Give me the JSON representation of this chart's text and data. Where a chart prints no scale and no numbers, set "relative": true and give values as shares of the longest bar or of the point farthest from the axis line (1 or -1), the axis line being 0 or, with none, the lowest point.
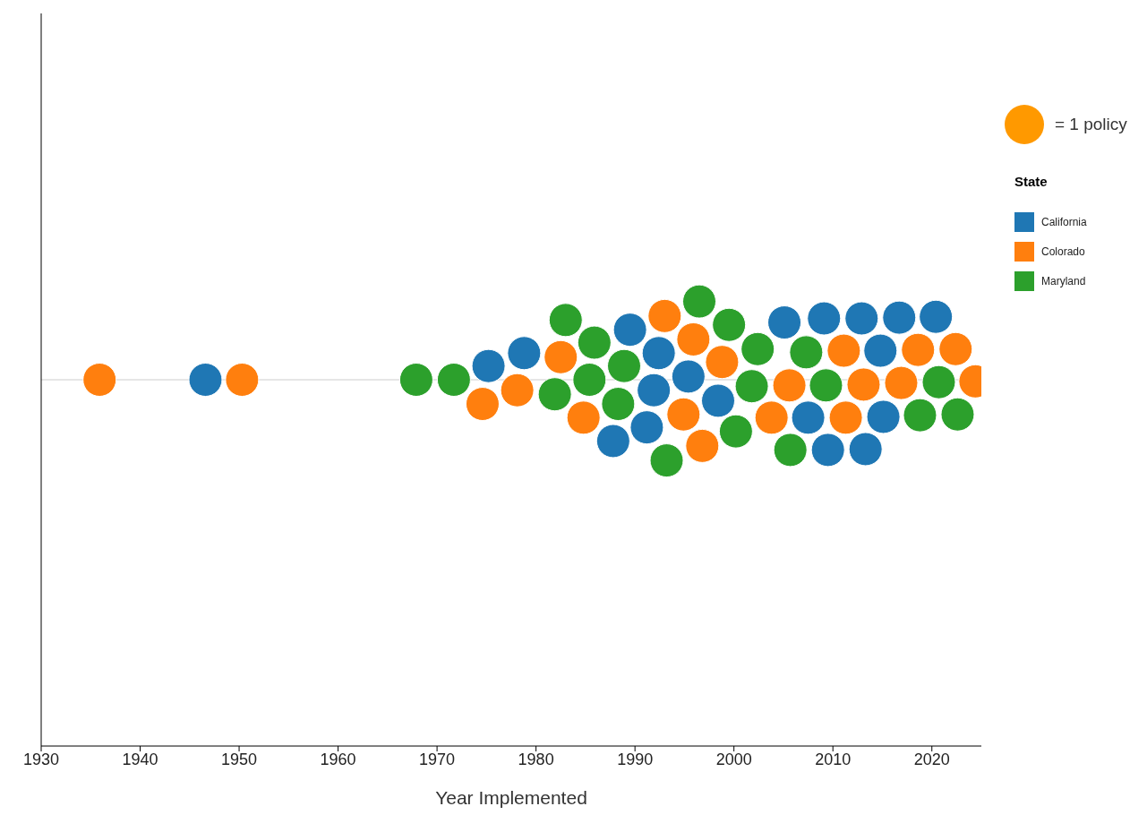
{
  "chart_data": {
    "type": "scatter",
    "relative": true,
    "xlabel": "Year Implemented",
    "xlim": [
      1930,
      2025
    ],
    "xticks": [
      1930,
      1940,
      1950,
      1960,
      1970,
      1980,
      1990,
      2000,
      2010,
      2020
    ],
    "tick_labels": "x",
    "legend": "right",
    "legend_title": "State",
    "marker": "circle",
    "annotations": [
      "= 1 policy"
    ],
    "series": [
      {
        "name": "California",
        "color": "#1f77b4",
        "x": [
          1946.6,
          1975.2,
          1978.8,
          1989.5,
          1992.4,
          1987.8,
          1991.9,
          1991.2,
          1995.4,
          1998.4,
          2005.1,
          2009.1,
          2012.9,
          2016.7,
          2020.4,
          2014.8,
          2007.5,
          2015.1,
          2009.5,
          2013.3
        ],
        "values": [
          0,
          0.17,
          0.33,
          0.62,
          0.33,
          -0.76,
          -0.13,
          -0.59,
          0.04,
          -0.26,
          0.71,
          0.76,
          0.76,
          0.77,
          0.78,
          0.36,
          -0.47,
          -0.46,
          -0.87,
          -0.86
        ]
      },
      {
        "name": "Colorado",
        "color": "#ff7f0e",
        "x": [
          1935.9,
          1950.3,
          1974.6,
          1978.1,
          1982.5,
          1984.8,
          1993.0,
          1995.9,
          1994.9,
          1996.8,
          1998.8,
          2003.8,
          2005.6,
          2011.1,
          2011.3,
          2013.1,
          2016.9,
          2018.6,
          2022.4,
          2024.4
        ],
        "values": [
          0,
          0,
          -0.3,
          -0.13,
          0.28,
          -0.47,
          0.79,
          0.5,
          -0.43,
          -0.82,
          0.22,
          -0.47,
          -0.07,
          0.36,
          -0.47,
          -0.06,
          -0.04,
          0.37,
          0.38,
          -0.02
        ]
      },
      {
        "name": "Maryland",
        "color": "#2ca02c",
        "x": [
          1967.9,
          1971.7,
          1983.0,
          1985.9,
          1981.9,
          1985.4,
          1988.9,
          1988.3,
          1993.2,
          1996.5,
          1999.5,
          2002.4,
          2001.8,
          2000.2,
          2005.7,
          2007.3,
          2009.3,
          2020.7,
          2018.8,
          2022.6
        ],
        "values": [
          0,
          0,
          0.74,
          0.46,
          -0.18,
          0,
          0.17,
          -0.3,
          -1,
          0.97,
          0.68,
          0.38,
          -0.08,
          -0.64,
          -0.87,
          0.34,
          -0.07,
          -0.03,
          -0.44,
          -0.43
        ]
      }
    ]
  }
}
